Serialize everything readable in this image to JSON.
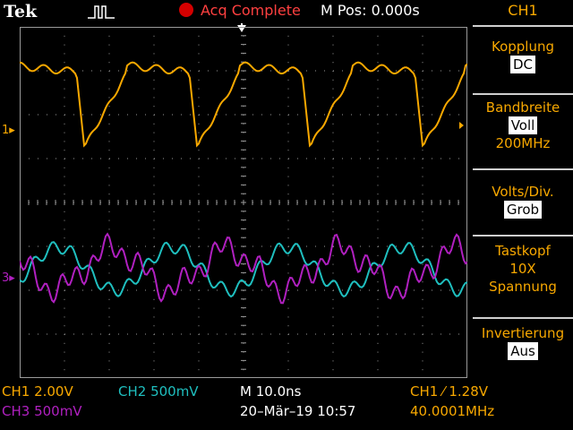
{
  "header": {
    "brand": "Tek",
    "acq_status": "Acq Complete",
    "mpos": "M Pos: 0.000s"
  },
  "channels": {
    "ch1_marker": "1",
    "ch3_marker": "3"
  },
  "menu": {
    "title": "CH1",
    "items": [
      {
        "label": "Kopplung",
        "value": "DC"
      },
      {
        "label": "Bandbreite",
        "value": "Voll",
        "extra": "200MHz"
      },
      {
        "label": "Volts/Div.",
        "value": "Grob"
      },
      {
        "label": "Tastkopf",
        "line2": "10X",
        "line3": "Spannung"
      },
      {
        "label": "Invertierung",
        "value": "Aus"
      }
    ]
  },
  "status": {
    "ch1_scale": "CH1  2.00V",
    "ch2_scale": "CH2  500mV",
    "ch3_scale": "CH3  500mV",
    "timebase": "M 10.0ns",
    "datetime": "20–Mär–19 10:57",
    "trigger": "CH1  ⁄  1.28V",
    "frequency": "40.0001MHz"
  },
  "colors": {
    "ch1": "#f8a800",
    "ch2": "#1fbfbf",
    "ch3": "#b020c0",
    "graticule": "#9a9a9a"
  },
  "icons": {
    "trigger_type": "edge-trigger-icon",
    "trigger_position": "trigger-position-arrow-icon",
    "acquisition": "acq-status-dot-icon"
  }
}
